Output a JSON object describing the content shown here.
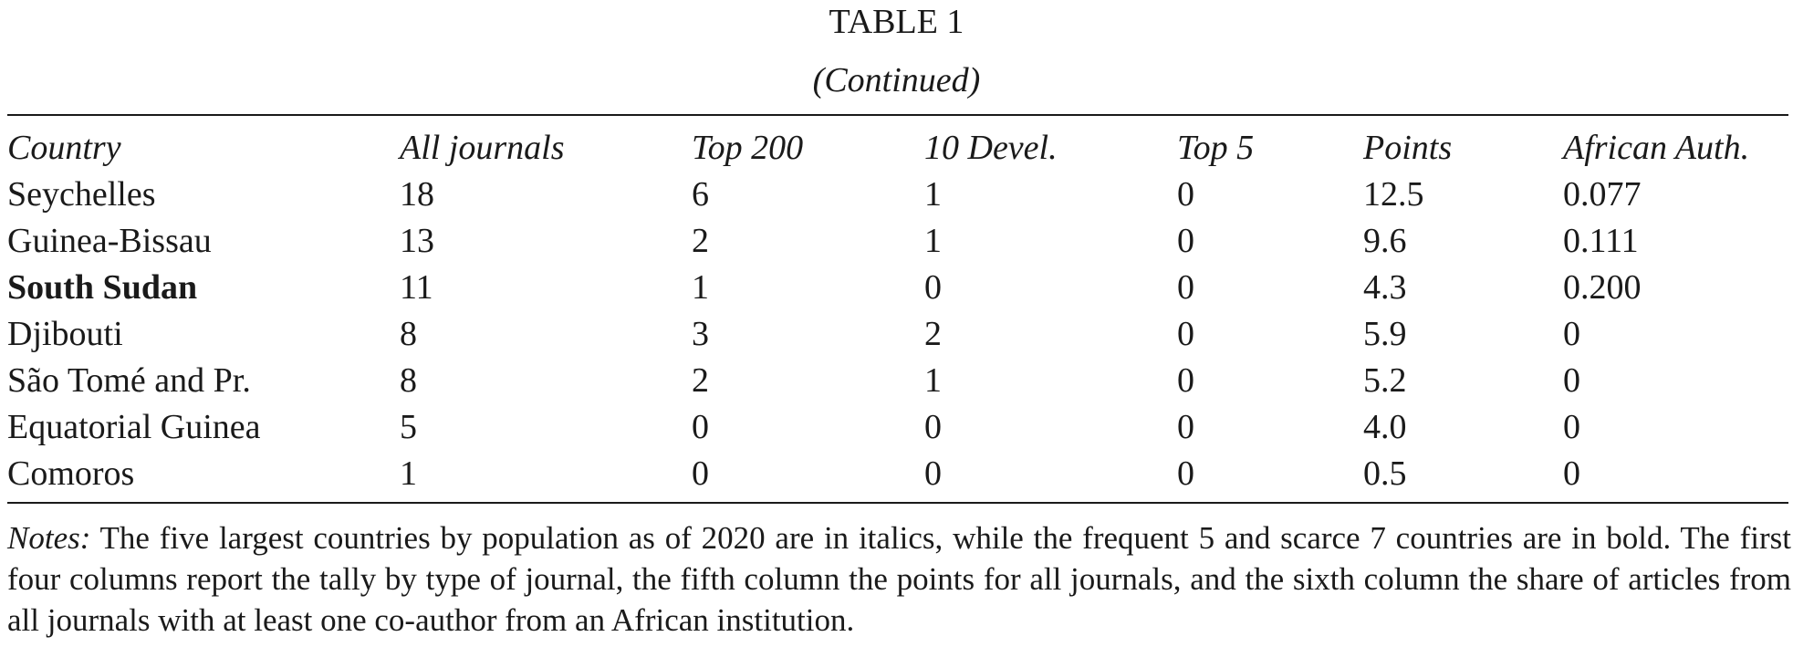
{
  "title": "TABLE 1",
  "subtitle": "(Continued)",
  "table": {
    "headers": [
      "Country",
      "All journals",
      "Top 200",
      "10 Devel.",
      "Top 5",
      "Points",
      "African Auth."
    ],
    "rows": [
      [
        "Seychelles",
        "18",
        "6",
        "1",
        "0",
        "12.5",
        "0.077"
      ],
      [
        "Guinea-Bissau",
        "13",
        "2",
        "1",
        "0",
        "9.6",
        "0.111"
      ],
      [
        "South Sudan",
        "11",
        "1",
        "0",
        "0",
        "4.3",
        "0.200"
      ],
      [
        "Djibouti",
        "8",
        "3",
        "2",
        "0",
        "5.9",
        "0"
      ],
      [
        "São Tomé and Pr.",
        "8",
        "2",
        "1",
        "0",
        "5.2",
        "0"
      ],
      [
        "Equatorial Guinea",
        "5",
        "0",
        "0",
        "0",
        "4.0",
        "0"
      ],
      [
        "Comoros",
        "1",
        "0",
        "0",
        "0",
        "0.5",
        "0"
      ]
    ],
    "bold_countries": [
      "South Sudan"
    ]
  },
  "notes": {
    "label": "Notes:",
    "text": "The five largest countries by population as of 2020 are in italics, while the frequent 5 and scarce 7 countries are in bold. The first four columns report the tally by type of journal, the fifth column the points for all journals, and the sixth column the share of articles from all journals with at least one co-author from an African institution."
  }
}
